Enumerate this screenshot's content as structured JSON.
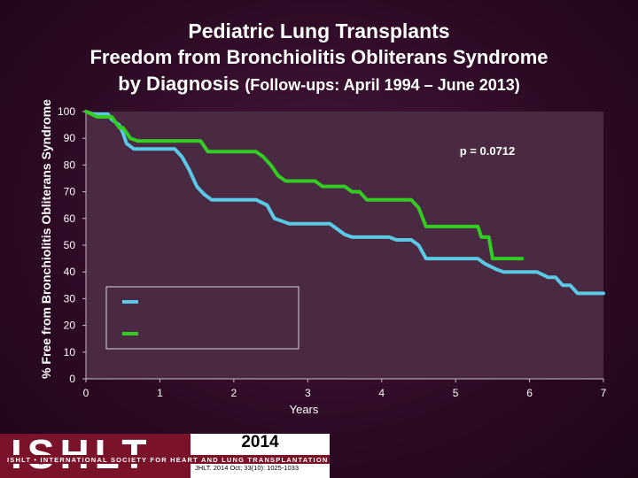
{
  "header": {
    "title": "Pediatric Lung Transplants",
    "subtitle": "Freedom from Bronchiolitis Obliterans Syndrome",
    "subtitle2_main": "by Diagnosis",
    "subtitle2_small": "(Follow-ups: April 1994 – June 2013)"
  },
  "logo": {
    "letters": "ISHLT",
    "strip_text": "ISHLT • INTERNATIONAL SOCIETY FOR HEART AND LUNG TRANSPLANTATION",
    "year": "2014",
    "citation": "JHLT. 2014 Oct; 33(10): 1025-1033"
  },
  "chart_data": {
    "type": "line",
    "ylabel": "% Free from Bronchiolitis Obliterans Syndrome",
    "xlabel": "Years",
    "xlim": [
      0,
      7
    ],
    "ylim": [
      0,
      100
    ],
    "x_ticks": [
      "0",
      "1",
      "2",
      "3",
      "4",
      "5",
      "6",
      "7"
    ],
    "y_ticks": [
      "0",
      "10",
      "20",
      "30",
      "40",
      "50",
      "60",
      "70",
      "80",
      "90",
      "100"
    ],
    "annotation": "p = 0.0712",
    "legend_position": "bottom-left",
    "series": [
      {
        "color": "#5bc8e6",
        "points": [
          [
            0,
            100
          ],
          [
            0.1,
            99
          ],
          [
            0.3,
            99
          ],
          [
            0.35,
            97
          ],
          [
            0.45,
            95
          ],
          [
            0.5,
            92
          ],
          [
            0.55,
            88
          ],
          [
            0.65,
            86
          ],
          [
            0.75,
            86
          ],
          [
            1.2,
            86
          ],
          [
            1.3,
            83
          ],
          [
            1.4,
            78
          ],
          [
            1.5,
            72
          ],
          [
            1.6,
            69
          ],
          [
            1.7,
            67
          ],
          [
            2.3,
            67
          ],
          [
            2.45,
            65
          ],
          [
            2.55,
            60
          ],
          [
            2.65,
            59
          ],
          [
            2.75,
            58
          ],
          [
            3.3,
            58
          ],
          [
            3.4,
            56
          ],
          [
            3.5,
            54
          ],
          [
            3.6,
            53
          ],
          [
            4.1,
            53
          ],
          [
            4.2,
            52
          ],
          [
            4.4,
            52
          ],
          [
            4.5,
            50
          ],
          [
            4.6,
            45
          ],
          [
            5.3,
            45
          ],
          [
            5.4,
            43
          ],
          [
            5.55,
            41
          ],
          [
            5.65,
            40
          ],
          [
            6.1,
            40
          ],
          [
            6.25,
            38
          ],
          [
            6.35,
            38
          ],
          [
            6.45,
            35
          ],
          [
            6.55,
            35
          ],
          [
            6.65,
            32
          ],
          [
            7,
            32
          ]
        ]
      },
      {
        "color": "#33cc22",
        "points": [
          [
            0,
            100
          ],
          [
            0.15,
            98
          ],
          [
            0.35,
            98
          ],
          [
            0.45,
            94
          ],
          [
            0.5,
            94
          ],
          [
            0.6,
            90
          ],
          [
            0.7,
            89
          ],
          [
            1.55,
            89
          ],
          [
            1.65,
            85
          ],
          [
            2.3,
            85
          ],
          [
            2.4,
            83
          ],
          [
            2.5,
            80
          ],
          [
            2.6,
            76
          ],
          [
            2.7,
            74
          ],
          [
            3.1,
            74
          ],
          [
            3.2,
            72
          ],
          [
            3.5,
            72
          ],
          [
            3.6,
            70
          ],
          [
            3.7,
            70
          ],
          [
            3.8,
            67
          ],
          [
            4.4,
            67
          ],
          [
            4.5,
            64
          ],
          [
            4.6,
            57
          ],
          [
            5.3,
            57
          ],
          [
            5.35,
            53
          ],
          [
            5.45,
            53
          ],
          [
            5.5,
            45
          ],
          [
            5.9,
            45
          ]
        ]
      }
    ]
  }
}
